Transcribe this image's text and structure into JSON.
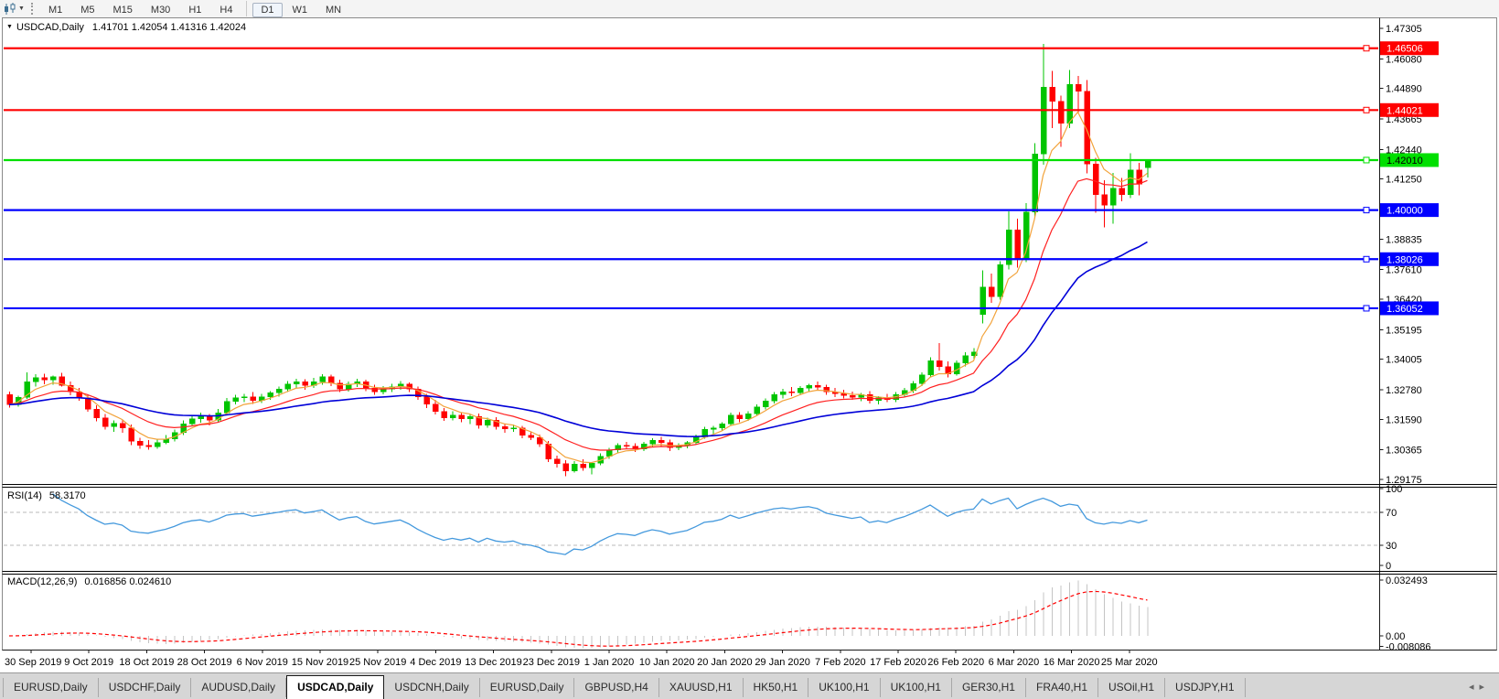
{
  "toolbar": {
    "timeframes": [
      "M1",
      "M5",
      "M15",
      "M30",
      "H1",
      "H4",
      "D1",
      "W1",
      "MN"
    ],
    "active_timeframe": "D1",
    "divider_before": "D1"
  },
  "chart": {
    "title": "USDCAD,Daily",
    "ohlc_text": "1.41701 1.42054 1.41316 1.42024",
    "colors": {
      "bull": "#00C400",
      "bear": "#FF0000",
      "ma_fast": "#F2A33B",
      "ma_mid": "#FF2020",
      "ma_slow": "#0000D8",
      "level_red": "#FF0000",
      "level_green": "#00DF00",
      "level_blue": "#0000FF",
      "rsi_line": "#4499DD",
      "macd_hist": "#C4C4C4",
      "macd_signal": "#FF0000",
      "grid_dash": "#B8B8B8",
      "axis_text": "#000000"
    },
    "price_tick_labels": [
      "1.47305",
      "1.46080",
      "1.44890",
      "1.43665",
      "1.42440",
      "1.41250",
      "1.38835",
      "1.37610",
      "1.36420",
      "1.35195",
      "1.34005",
      "1.32780",
      "1.31590",
      "1.30365",
      "1.29175"
    ],
    "levels": [
      {
        "price": 1.46506,
        "label": "1.46506",
        "color": "#FF0000",
        "text_color": "#FFFFFF"
      },
      {
        "price": 1.44021,
        "label": "1.44021",
        "color": "#FF0000",
        "text_color": "#FFFFFF"
      },
      {
        "price": 1.4201,
        "label": "1.42010",
        "color": "#00DF00",
        "text_color": "#000000"
      },
      {
        "price": 1.4,
        "label": "1.40000",
        "color": "#0000FF",
        "text_color": "#FFFFFF"
      },
      {
        "price": 1.38026,
        "label": "1.38026",
        "color": "#0000FF",
        "text_color": "#FFFFFF"
      },
      {
        "price": 1.36052,
        "label": "1.36052",
        "color": "#0000FF",
        "text_color": "#FFFFFF"
      }
    ]
  },
  "chart_data": {
    "type": "candlestick",
    "symbol": "USDCAD",
    "timeframe": "Daily",
    "visible_range": {
      "price_min": 1.29175,
      "price_max": 1.47305,
      "date_start": "30 Sep 2019",
      "date_end": "25 Mar 2020"
    },
    "date_tick_labels": [
      "30 Sep 2019",
      "9 Oct 2019",
      "18 Oct 2019",
      "28 Oct 2019",
      "6 Nov 2019",
      "15 Nov 2019",
      "25 Nov 2019",
      "4 Dec 2019",
      "13 Dec 2019",
      "23 Dec 2019",
      "1 Jan 2020",
      "10 Jan 2020",
      "20 Jan 2020",
      "29 Jan 2020",
      "7 Feb 2020",
      "17 Feb 2020",
      "26 Feb 2020",
      "6 Mar 2020",
      "16 Mar 2020",
      "25 Mar 2020"
    ],
    "candles_ohlc": [
      [
        1.3258,
        1.327,
        1.3206,
        1.3218
      ],
      [
        1.3218,
        1.3253,
        1.321,
        1.3248
      ],
      [
        1.3248,
        1.3347,
        1.324,
        1.331
      ],
      [
        1.331,
        1.334,
        1.329,
        1.3327
      ],
      [
        1.3327,
        1.3342,
        1.33,
        1.3318
      ],
      [
        1.3318,
        1.3335,
        1.3298,
        1.333
      ],
      [
        1.333,
        1.3345,
        1.329,
        1.3296
      ],
      [
        1.3296,
        1.331,
        1.3255,
        1.327
      ],
      [
        1.327,
        1.3285,
        1.3233,
        1.3245
      ],
      [
        1.3245,
        1.3258,
        1.319,
        1.32
      ],
      [
        1.32,
        1.3215,
        1.315,
        1.3165
      ],
      [
        1.3165,
        1.318,
        1.3118,
        1.313
      ],
      [
        1.313,
        1.3155,
        1.3108,
        1.3142
      ],
      [
        1.3142,
        1.3158,
        1.3105,
        1.3125
      ],
      [
        1.3125,
        1.3138,
        1.3055,
        1.307
      ],
      [
        1.307,
        1.3085,
        1.304,
        1.3055
      ],
      [
        1.3055,
        1.3075,
        1.3036,
        1.3048
      ],
      [
        1.3048,
        1.308,
        1.304,
        1.3065
      ],
      [
        1.3065,
        1.3095,
        1.3058,
        1.308
      ],
      [
        1.308,
        1.3118,
        1.307,
        1.3105
      ],
      [
        1.3105,
        1.3155,
        1.3095,
        1.314
      ],
      [
        1.314,
        1.3175,
        1.313,
        1.316
      ],
      [
        1.316,
        1.3185,
        1.3145,
        1.317
      ],
      [
        1.317,
        1.318,
        1.3135,
        1.3155
      ],
      [
        1.3155,
        1.32,
        1.3148,
        1.3185
      ],
      [
        1.3185,
        1.3245,
        1.3175,
        1.323
      ],
      [
        1.323,
        1.3258,
        1.3218,
        1.3245
      ],
      [
        1.3245,
        1.3262,
        1.3228,
        1.325
      ],
      [
        1.325,
        1.3268,
        1.322,
        1.3235
      ],
      [
        1.3235,
        1.3262,
        1.3225,
        1.325
      ],
      [
        1.325,
        1.3272,
        1.3238,
        1.3265
      ],
      [
        1.3265,
        1.329,
        1.325,
        1.328
      ],
      [
        1.328,
        1.3312,
        1.3268,
        1.33
      ],
      [
        1.33,
        1.3322,
        1.3285,
        1.331
      ],
      [
        1.331,
        1.332,
        1.3278,
        1.3295
      ],
      [
        1.3295,
        1.3325,
        1.3285,
        1.331
      ],
      [
        1.331,
        1.334,
        1.3298,
        1.333
      ],
      [
        1.333,
        1.3338,
        1.3292,
        1.3305
      ],
      [
        1.3305,
        1.3318,
        1.3268,
        1.328
      ],
      [
        1.328,
        1.331,
        1.327,
        1.33
      ],
      [
        1.33,
        1.3322,
        1.3288,
        1.331
      ],
      [
        1.331,
        1.3318,
        1.3272,
        1.3285
      ],
      [
        1.3285,
        1.3298,
        1.3258,
        1.327
      ],
      [
        1.327,
        1.3292,
        1.326,
        1.328
      ],
      [
        1.328,
        1.3302,
        1.3268,
        1.329
      ],
      [
        1.329,
        1.3312,
        1.3278,
        1.33
      ],
      [
        1.33,
        1.3308,
        1.3268,
        1.328
      ],
      [
        1.328,
        1.329,
        1.3238,
        1.325
      ],
      [
        1.325,
        1.3262,
        1.3205,
        1.322
      ],
      [
        1.322,
        1.3238,
        1.3178,
        1.319
      ],
      [
        1.319,
        1.3205,
        1.3152,
        1.3165
      ],
      [
        1.3165,
        1.3192,
        1.3155,
        1.3175
      ],
      [
        1.3175,
        1.3188,
        1.3148,
        1.316
      ],
      [
        1.316,
        1.3178,
        1.314,
        1.317
      ],
      [
        1.317,
        1.3182,
        1.3122,
        1.3135
      ],
      [
        1.3135,
        1.3165,
        1.3125,
        1.3155
      ],
      [
        1.3155,
        1.3168,
        1.3118,
        1.313
      ],
      [
        1.313,
        1.3142,
        1.3105,
        1.312
      ],
      [
        1.312,
        1.3138,
        1.3108,
        1.3125
      ],
      [
        1.3125,
        1.3132,
        1.3082,
        1.3095
      ],
      [
        1.3095,
        1.311,
        1.3075,
        1.3085
      ],
      [
        1.3085,
        1.3098,
        1.3048,
        1.306
      ],
      [
        1.306,
        1.3072,
        1.2988,
        1.3
      ],
      [
        1.3,
        1.3012,
        1.2965,
        1.298
      ],
      [
        1.298,
        1.2995,
        1.293,
        1.2952
      ],
      [
        1.2952,
        1.299,
        1.2945,
        1.2978
      ],
      [
        1.2978,
        1.2998,
        1.2952,
        1.2965
      ],
      [
        1.2965,
        1.2988,
        1.2938,
        1.2982
      ],
      [
        1.2982,
        1.3022,
        1.2975,
        1.301
      ],
      [
        1.301,
        1.3045,
        1.3,
        1.3035
      ],
      [
        1.3035,
        1.3062,
        1.3025,
        1.3055
      ],
      [
        1.3055,
        1.3068,
        1.3038,
        1.305
      ],
      [
        1.305,
        1.3062,
        1.3028,
        1.304
      ],
      [
        1.304,
        1.3068,
        1.3032,
        1.306
      ],
      [
        1.306,
        1.3082,
        1.3048,
        1.3075
      ],
      [
        1.3075,
        1.3088,
        1.3052,
        1.3065
      ],
      [
        1.3065,
        1.3078,
        1.3032,
        1.3045
      ],
      [
        1.3045,
        1.3062,
        1.3035,
        1.3055
      ],
      [
        1.3055,
        1.3072,
        1.3042,
        1.3065
      ],
      [
        1.3065,
        1.3098,
        1.3058,
        1.3088
      ],
      [
        1.3088,
        1.3128,
        1.308,
        1.3118
      ],
      [
        1.3118,
        1.3132,
        1.3098,
        1.3125
      ],
      [
        1.3125,
        1.3148,
        1.3112,
        1.314
      ],
      [
        1.314,
        1.3185,
        1.3132,
        1.3175
      ],
      [
        1.3175,
        1.3188,
        1.3148,
        1.316
      ],
      [
        1.316,
        1.3192,
        1.3152,
        1.3182
      ],
      [
        1.3182,
        1.3218,
        1.3172,
        1.3208
      ],
      [
        1.3208,
        1.3242,
        1.3198,
        1.3232
      ],
      [
        1.3232,
        1.3268,
        1.3222,
        1.3258
      ],
      [
        1.3258,
        1.3282,
        1.3242,
        1.327
      ],
      [
        1.327,
        1.3288,
        1.3252,
        1.3265
      ],
      [
        1.3265,
        1.3292,
        1.3255,
        1.3285
      ],
      [
        1.3285,
        1.3302,
        1.3268,
        1.3295
      ],
      [
        1.3295,
        1.331,
        1.3275,
        1.3288
      ],
      [
        1.3288,
        1.3298,
        1.3258,
        1.327
      ],
      [
        1.327,
        1.3285,
        1.3248,
        1.3262
      ],
      [
        1.3262,
        1.3278,
        1.3242,
        1.3255
      ],
      [
        1.3255,
        1.327,
        1.3238,
        1.3248
      ],
      [
        1.3248,
        1.3265,
        1.3232,
        1.3258
      ],
      [
        1.3258,
        1.3272,
        1.3222,
        1.3235
      ],
      [
        1.3235,
        1.3252,
        1.3218,
        1.3245
      ],
      [
        1.3245,
        1.3262,
        1.3228,
        1.3238
      ],
      [
        1.3238,
        1.3268,
        1.3228,
        1.3258
      ],
      [
        1.3258,
        1.3285,
        1.3248,
        1.3275
      ],
      [
        1.3275,
        1.3312,
        1.3265,
        1.3302
      ],
      [
        1.3302,
        1.3348,
        1.3292,
        1.3338
      ],
      [
        1.3338,
        1.3408,
        1.3328,
        1.3395
      ],
      [
        1.3395,
        1.3465,
        1.3355,
        1.337
      ],
      [
        1.337,
        1.3392,
        1.3328,
        1.3342
      ],
      [
        1.3342,
        1.3395,
        1.3335,
        1.3385
      ],
      [
        1.3385,
        1.3428,
        1.3372,
        1.3415
      ],
      [
        1.3415,
        1.3445,
        1.3398,
        1.343
      ],
      [
        1.358,
        1.3758,
        1.3545,
        1.369
      ],
      [
        1.369,
        1.3745,
        1.3628,
        1.3652
      ],
      [
        1.3652,
        1.3795,
        1.364,
        1.378
      ],
      [
        1.378,
        1.3995,
        1.3762,
        1.392
      ],
      [
        1.392,
        1.3965,
        1.3768,
        1.3802
      ],
      [
        1.3802,
        1.4028,
        1.379,
        1.3992
      ],
      [
        1.3992,
        1.4268,
        1.3975,
        1.4225
      ],
      [
        1.4225,
        1.4668,
        1.4182,
        1.4495
      ],
      [
        1.4495,
        1.456,
        1.433,
        1.4438
      ],
      [
        1.4438,
        1.446,
        1.4255,
        1.4348
      ],
      [
        1.4348,
        1.4563,
        1.433,
        1.4505
      ],
      [
        1.4505,
        1.454,
        1.4388,
        1.4478
      ],
      [
        1.4478,
        1.4522,
        1.4148,
        1.4185
      ],
      [
        1.4185,
        1.421,
        1.399,
        1.4062
      ],
      [
        1.4062,
        1.412,
        1.393,
        1.402
      ],
      [
        1.402,
        1.415,
        1.3945,
        1.4088
      ],
      [
        1.4088,
        1.413,
        1.4035,
        1.4062
      ],
      [
        1.4062,
        1.4228,
        1.4048,
        1.4162
      ],
      [
        1.4162,
        1.419,
        1.406,
        1.4105
      ],
      [
        1.41701,
        1.42054,
        1.41316,
        1.42024
      ]
    ],
    "indicators": {
      "moving_averages": [
        {
          "name": "fast",
          "period": 5,
          "color": "#F2A33B"
        },
        {
          "name": "mid",
          "period": 13,
          "color": "#FF2020"
        },
        {
          "name": "slow",
          "period": 34,
          "color": "#0000D8"
        }
      ]
    }
  },
  "rsi": {
    "name": "RSI(14)",
    "value": "58.3170",
    "axis_labels": [
      "100",
      "70",
      "30",
      "0"
    ],
    "level_high": 70,
    "level_low": 30
  },
  "macd": {
    "name": "MACD(12,26,9)",
    "values": "0.016856 0.024610",
    "axis_labels": [
      "0.032493",
      "0.00",
      "-0.008086"
    ]
  },
  "tabs": {
    "items": [
      "EURUSD,Daily",
      "USDCHF,Daily",
      "AUDUSD,Daily",
      "USDCAD,Daily",
      "USDCNH,Daily",
      "EURUSD,Daily",
      "GBPUSD,H4",
      "XAUUSD,H1",
      "HK50,H1",
      "UK100,H1",
      "UK100,H1",
      "GER30,H1",
      "FRA40,H1",
      "USOil,H1",
      "USDJPY,H1"
    ],
    "active_index": 3,
    "scroll_left_icon": "◂",
    "scroll_right_icon": "▸"
  }
}
